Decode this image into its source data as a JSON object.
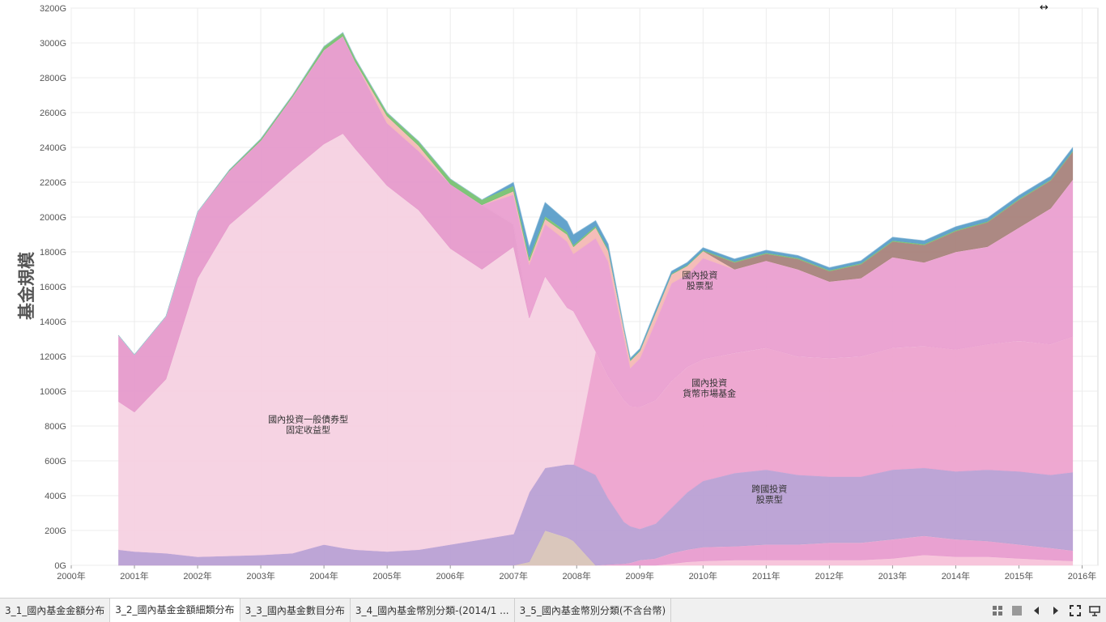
{
  "chart_data": {
    "type": "area",
    "stacked": true,
    "title": "",
    "xlabel": "",
    "ylabel": "基金規模",
    "xlim": [
      2000.0,
      2016.25
    ],
    "ylim": [
      0,
      3200
    ],
    "y_ticks": [
      "0G",
      "200G",
      "400G",
      "600G",
      "800G",
      "1000G",
      "1200G",
      "1400G",
      "1600G",
      "1800G",
      "2000G",
      "2200G",
      "2400G",
      "2600G",
      "2800G",
      "3000G",
      "3200G"
    ],
    "x_ticks": [
      "2000年",
      "2001年",
      "2002年",
      "2003年",
      "2004年",
      "2005年",
      "2006年",
      "2007年",
      "2008年",
      "2009年",
      "2010年",
      "2011年",
      "2012年",
      "2013年",
      "2014年",
      "2015年",
      "2016年"
    ],
    "grid": true,
    "x": [
      2000.75,
      2001.0,
      2001.5,
      2002.0,
      2002.5,
      2003.0,
      2003.5,
      2004.0,
      2004.3,
      2004.5,
      2005.0,
      2005.5,
      2006.0,
      2006.5,
      2007.0,
      2007.25,
      2007.5,
      2007.85,
      2007.95,
      2008.3,
      2008.5,
      2008.75,
      2008.85,
      2009.0,
      2009.25,
      2009.5,
      2009.75,
      2010.0,
      2010.5,
      2011.0,
      2011.5,
      2012.0,
      2012.5,
      2013.0,
      2013.5,
      2014.0,
      2014.5,
      2015.0,
      2015.5,
      2015.85
    ],
    "series": [
      {
        "name": "",
        "color": "#f7c2d9",
        "values": [
          0,
          0,
          0,
          0,
          0,
          0,
          0,
          0,
          0,
          0,
          0,
          0,
          0,
          0,
          0,
          0,
          0,
          0,
          0,
          0,
          0,
          0,
          0,
          0,
          0,
          10,
          20,
          25,
          30,
          30,
          30,
          30,
          30,
          40,
          60,
          50,
          50,
          40,
          30,
          25
        ]
      },
      {
        "name": "",
        "color": "#e89ccf",
        "values": [
          0,
          0,
          0,
          0,
          0,
          0,
          0,
          0,
          0,
          0,
          0,
          0,
          0,
          0,
          0,
          0,
          0,
          0,
          0,
          0,
          5,
          10,
          15,
          30,
          40,
          60,
          70,
          80,
          80,
          90,
          90,
          100,
          100,
          110,
          110,
          100,
          90,
          80,
          70,
          60
        ]
      },
      {
        "name": "",
        "color": "#d8c4b8",
        "values": [
          0,
          0,
          0,
          0,
          0,
          0,
          0,
          0,
          0,
          0,
          0,
          0,
          0,
          0,
          0,
          20,
          200,
          160,
          140,
          0,
          0,
          0,
          0,
          0,
          0,
          0,
          0,
          0,
          0,
          0,
          0,
          0,
          0,
          0,
          0,
          0,
          0,
          0,
          0,
          0
        ]
      },
      {
        "name": "",
        "color": "#b9a0d4",
        "values": [
          90,
          80,
          70,
          50,
          55,
          60,
          70,
          120,
          100,
          90,
          80,
          90,
          120,
          150,
          180,
          400,
          360,
          420,
          440,
          520,
          380,
          240,
          210,
          180,
          200,
          260,
          330,
          380,
          420,
          430,
          400,
          380,
          380,
          400,
          390,
          390,
          410,
          420,
          420,
          450
        ]
      },
      {
        "name": "",
        "color": "#eda3cf",
        "values": [
          0,
          0,
          0,
          0,
          0,
          0,
          0,
          0,
          0,
          0,
          0,
          0,
          0,
          0,
          0,
          0,
          0,
          0,
          0,
          710,
          700,
          700,
          690,
          700,
          710,
          730,
          720,
          700,
          690,
          700,
          680,
          680,
          690,
          700,
          700,
          700,
          720,
          750,
          750,
          780
        ]
      },
      {
        "name": "",
        "color": "#f6d1e2",
        "values": [
          850,
          800,
          1000,
          1600,
          1900,
          2050,
          2200,
          2300,
          2380,
          2300,
          2100,
          1950,
          1700,
          1550,
          1650,
          1000,
          1100,
          900,
          880,
          0,
          0,
          0,
          0,
          0,
          0,
          0,
          0,
          0,
          0,
          0,
          0,
          0,
          0,
          0,
          0,
          0,
          0,
          0,
          0,
          0
        ]
      },
      {
        "name": "",
        "color": "#e69acb",
        "values": [
          380,
          330,
          360,
          380,
          310,
          330,
          420,
          540,
          560,
          500,
          360,
          340,
          370,
          370,
          130,
          0,
          0,
          0,
          0,
          0,
          0,
          0,
          0,
          0,
          0,
          0,
          0,
          0,
          0,
          0,
          0,
          0,
          0,
          0,
          0,
          0,
          0,
          0,
          0,
          0
        ]
      },
      {
        "name": "",
        "color": "#ea9fd0",
        "values": [
          0,
          0,
          0,
          0,
          0,
          0,
          0,
          0,
          0,
          0,
          0,
          0,
          0,
          0,
          170,
          310,
          300,
          380,
          330,
          650,
          660,
          360,
          220,
          280,
          450,
          560,
          530,
          580,
          480,
          500,
          500,
          440,
          450,
          520,
          480,
          560,
          560,
          650,
          780,
          900
        ]
      },
      {
        "name": "",
        "color": "#f4b9b5",
        "values": [
          0,
          0,
          0,
          0,
          0,
          0,
          0,
          0,
          0,
          0,
          40,
          30,
          0,
          0,
          20,
          20,
          30,
          40,
          40,
          60,
          60,
          40,
          40,
          40,
          50,
          50,
          50,
          40,
          0,
          0,
          0,
          0,
          0,
          0,
          0,
          0,
          0,
          0,
          0,
          0
        ]
      },
      {
        "name": "",
        "color": "#a8837c",
        "values": [
          0,
          0,
          0,
          0,
          0,
          0,
          0,
          0,
          0,
          0,
          0,
          0,
          0,
          0,
          0,
          0,
          0,
          0,
          0,
          0,
          0,
          0,
          0,
          0,
          0,
          0,
          0,
          0,
          40,
          40,
          60,
          60,
          80,
          90,
          100,
          120,
          140,
          160,
          160,
          160
        ]
      },
      {
        "name": "",
        "color": "#78c272",
        "values": [
          0,
          0,
          0,
          0,
          5,
          10,
          10,
          20,
          20,
          20,
          20,
          25,
          30,
          30,
          30,
          20,
          15,
          15,
          10,
          10,
          10,
          5,
          5,
          5,
          5,
          5,
          5,
          5,
          5,
          5,
          5,
          5,
          5,
          5,
          5,
          5,
          5,
          5,
          5,
          5
        ]
      },
      {
        "name": "",
        "color": "#5b9ec9",
        "values": [
          0,
          0,
          0,
          0,
          0,
          0,
          0,
          0,
          0,
          0,
          0,
          0,
          0,
          0,
          20,
          60,
          80,
          60,
          60,
          30,
          30,
          10,
          10,
          10,
          15,
          15,
          15,
          15,
          15,
          15,
          15,
          15,
          15,
          20,
          20,
          20,
          20,
          20,
          20,
          20
        ]
      }
    ],
    "annotations": [
      {
        "text": "國內投資一般債券型",
        "line2": "固定收益型",
        "x": 2003.75,
        "y": 820
      },
      {
        "text": "國內投資",
        "line2": "股票型",
        "x": 2009.95,
        "y": 1650
      },
      {
        "text": "國內投資",
        "line2": "貨幣市場基金",
        "x": 2010.1,
        "y": 1030
      },
      {
        "text": "跨國投資",
        "line2": "股票型",
        "x": 2011.05,
        "y": 420
      }
    ]
  },
  "tabs": [
    {
      "label": "3_1_國內基金金額分布",
      "active": false
    },
    {
      "label": "3_2_國內基金金額細類分布",
      "active": true
    },
    {
      "label": "3_3_國內基金數目分布",
      "active": false
    },
    {
      "label": "3_4_國內基金幣別分類-(2014/1 ...",
      "active": false
    },
    {
      "label": "3_5_國內基金幣別分類(不含台幣)",
      "active": false
    }
  ],
  "controls": {
    "grid_icon": "grid-view-icon",
    "single_icon": "single-view-icon",
    "prev_icon": "prev-sheet-icon",
    "next_icon": "next-sheet-icon",
    "fullscreen_icon": "fullscreen-icon",
    "present_icon": "presentation-icon"
  },
  "cursor_glyph": "↔"
}
